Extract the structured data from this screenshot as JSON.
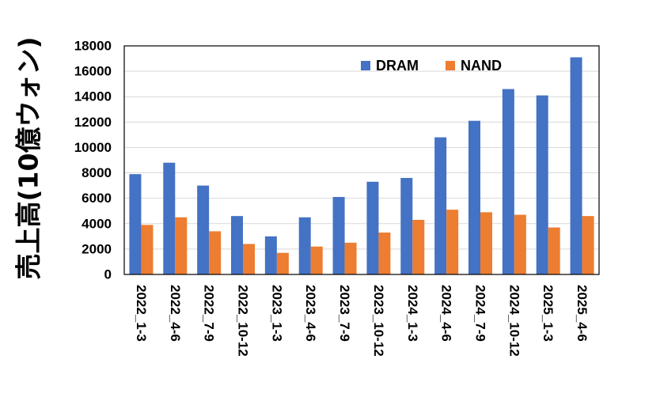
{
  "chart_data": {
    "type": "bar",
    "title": "",
    "xlabel": "",
    "ylabel": "売上高(10億ウォン)",
    "ylim": [
      0,
      18000
    ],
    "yticks": [
      0,
      2000,
      4000,
      6000,
      8000,
      10000,
      12000,
      14000,
      16000,
      18000
    ],
    "grid": true,
    "legend_position": "top-right",
    "categories": [
      "2022_1-3",
      "2022_4-6",
      "2022_7-9",
      "2022_10-12",
      "2023_1-3",
      "2023_4-6",
      "2023_7-9",
      "2023_10-12",
      "2024_1-3",
      "2024_4-6",
      "2024_7-9",
      "2024_10-12",
      "2025_1-3",
      "2025_4-6"
    ],
    "series": [
      {
        "name": "DRAM",
        "color": "#4472C4",
        "values": [
          7900,
          8800,
          7000,
          4600,
          3000,
          4500,
          6100,
          7300,
          7600,
          10800,
          12100,
          14600,
          14100,
          17100
        ]
      },
      {
        "name": "NAND",
        "color": "#ED7D31",
        "values": [
          3900,
          4500,
          3400,
          2400,
          1700,
          2200,
          2500,
          3300,
          4300,
          5100,
          4900,
          4700,
          3700,
          4600
        ]
      }
    ]
  }
}
